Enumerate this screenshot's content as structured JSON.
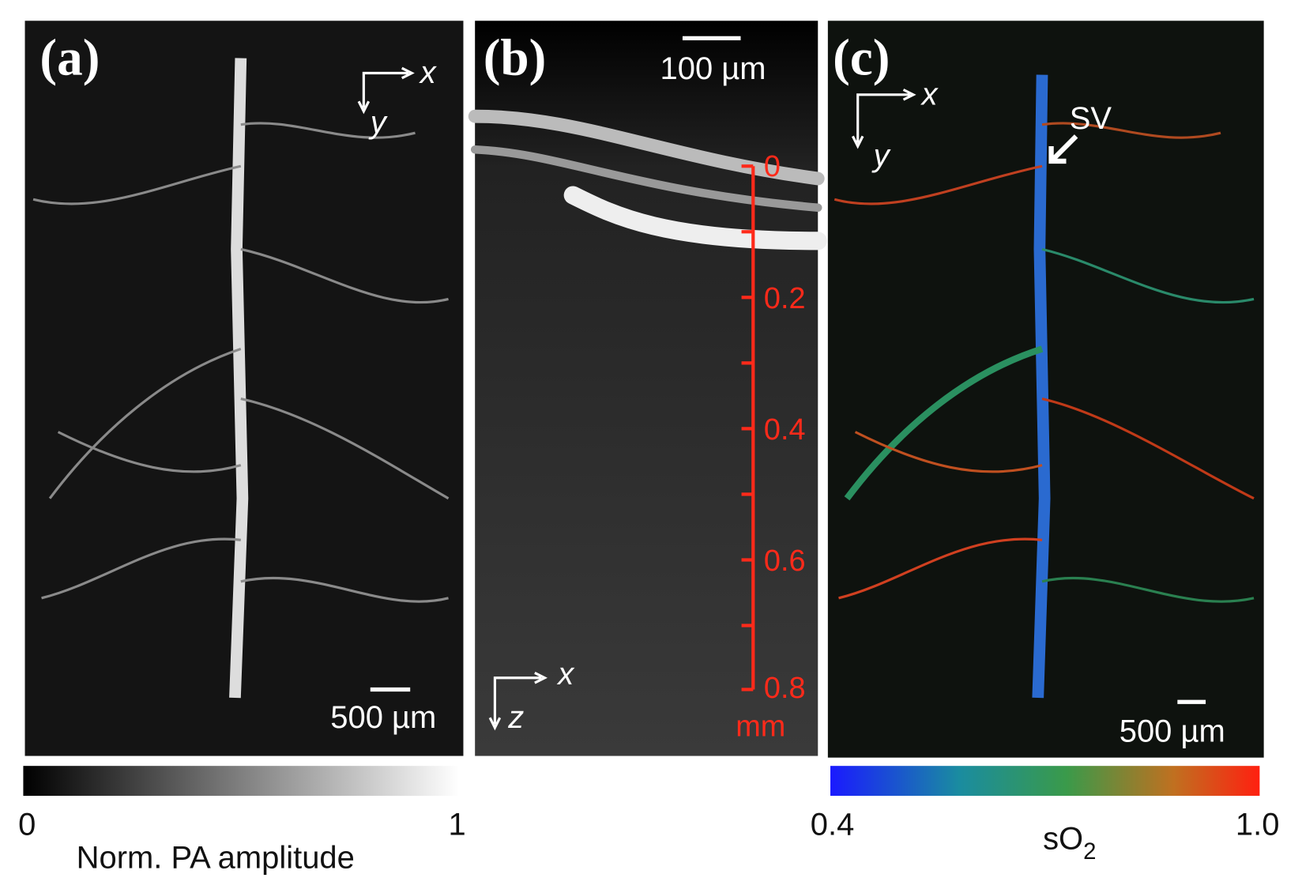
{
  "panels": [
    {
      "label": "(a)",
      "axes": [
        "x",
        "y"
      ],
      "scale_bar": "500 µm"
    },
    {
      "label": "(b)",
      "axes": [
        "x",
        "z"
      ],
      "scale_bar": "100 µm",
      "depth_ticks": [
        "0",
        "0.2",
        "0.4",
        "0.6",
        "0.8"
      ],
      "depth_unit": "mm"
    },
    {
      "label": "(c)",
      "axes": [
        "x",
        "y"
      ],
      "scale_bar": "500 µm",
      "annotation": "SV"
    }
  ],
  "colorbars": [
    {
      "min": "0",
      "max": "1",
      "title": "Norm. PA amplitude"
    },
    {
      "min": "0.4",
      "max": "1.0",
      "title": {
        "text": "sO",
        "subscript": "2"
      }
    }
  ]
}
